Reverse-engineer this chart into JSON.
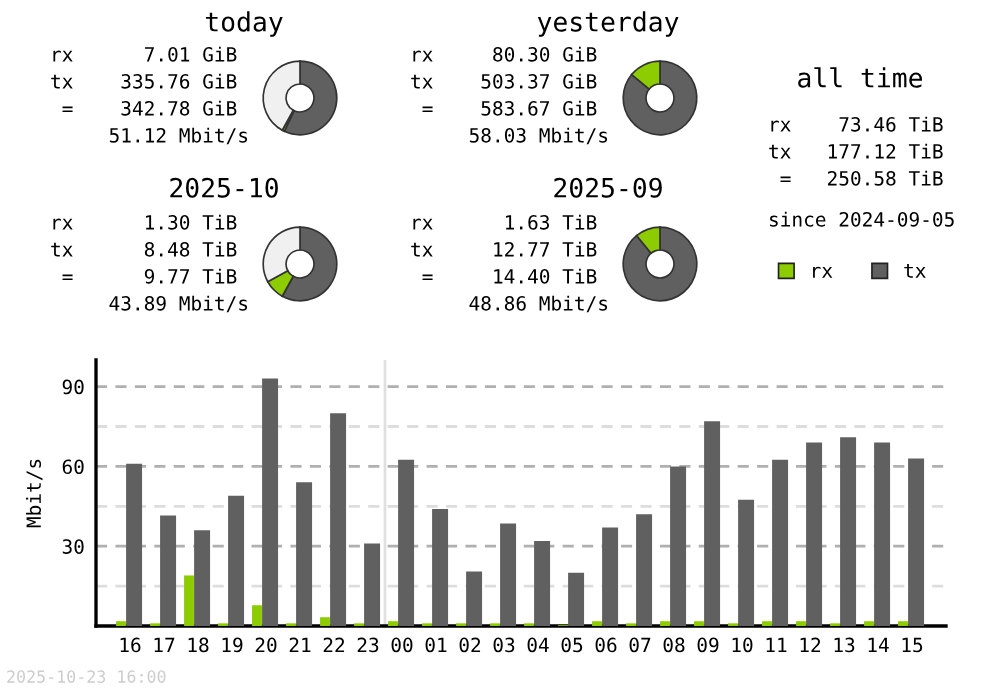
{
  "chart_data": [
    {
      "type": "donut",
      "title": "today",
      "categories": [
        null,
        null,
        null
      ],
      "values": [
        57,
        1,
        42
      ],
      "colors": [
        "#606060",
        "#8ccc00",
        "#f0f0f0"
      ],
      "annotations": [
        "rx      7.01 GiB",
        "tx    335.76 GiB",
        " =    342.78 GiB",
        "     51.12 Mbit/s"
      ]
    },
    {
      "type": "donut",
      "title": "yesterday",
      "categories": [
        null,
        null
      ],
      "values": [
        86,
        14
      ],
      "colors": [
        "#606060",
        "#8ccc00"
      ],
      "annotations": [
        "rx     80.30 GiB",
        "tx    503.37 GiB",
        " =    583.67 GiB",
        "     58.03 Mbit/s"
      ]
    },
    {
      "type": "other",
      "title": "all time",
      "annotations": [
        "rx    73.46 TiB",
        "tx   177.12 TiB",
        " =   250.58 TiB",
        "since 2024-09-05"
      ]
    },
    {
      "type": "donut",
      "title": "2025-10",
      "categories": [
        null,
        null,
        null
      ],
      "values": [
        58,
        9,
        33
      ],
      "colors": [
        "#606060",
        "#8ccc00",
        "#f0f0f0"
      ],
      "annotations": [
        "rx      1.30 TiB",
        "tx      8.48 TiB",
        " =      9.77 TiB",
        "     43.89 Mbit/s"
      ]
    },
    {
      "type": "donut",
      "title": "2025-09",
      "categories": [
        null,
        null
      ],
      "values": [
        89,
        11
      ],
      "colors": [
        "#606060",
        "#8ccc00"
      ],
      "annotations": [
        "rx      1.63 TiB",
        "tx     12.77 TiB",
        " =     14.40 TiB",
        "     48.86 Mbit/s"
      ]
    },
    {
      "type": "bar",
      "ylabel": "Mbit/s",
      "categories": [
        "16",
        "17",
        "18",
        "19",
        "20",
        "21",
        "22",
        "23",
        "00",
        "01",
        "02",
        "03",
        "04",
        "05",
        "06",
        "07",
        "08",
        "09",
        "10",
        "11",
        "12",
        "13",
        "14",
        "15"
      ],
      "series": [
        {
          "name": "rx",
          "color": "#8ccc00",
          "values": [
            1.8,
            1,
            19,
            1,
            7.8,
            1,
            3.3,
            1,
            1.8,
            1,
            1,
            1,
            1,
            0.3,
            1.8,
            1,
            1.8,
            1.8,
            1,
            1.8,
            1.8,
            1,
            1.8,
            1.8
          ]
        },
        {
          "name": "tx",
          "color": "#606060",
          "values": [
            61,
            41.5,
            36,
            49,
            93,
            54,
            80,
            31,
            62.5,
            44,
            20.5,
            38.5,
            32,
            20,
            37,
            42,
            60,
            77,
            47.5,
            62.5,
            69,
            71,
            69,
            63
          ]
        }
      ],
      "ylim": [
        0,
        100
      ],
      "yticks": [
        {
          "value": 15,
          "label": null
        },
        30,
        {
          "value": 45,
          "label": null
        },
        60,
        {
          "value": 75,
          "label": null
        },
        90
      ],
      "grid": "y",
      "legend": "top right",
      "ref_lines": [
        {
          "axis": "x",
          "value": "00",
          "color": "#e0e0e0"
        }
      ],
      "annotations": [
        "2025-10-23 16:00"
      ]
    }
  ]
}
